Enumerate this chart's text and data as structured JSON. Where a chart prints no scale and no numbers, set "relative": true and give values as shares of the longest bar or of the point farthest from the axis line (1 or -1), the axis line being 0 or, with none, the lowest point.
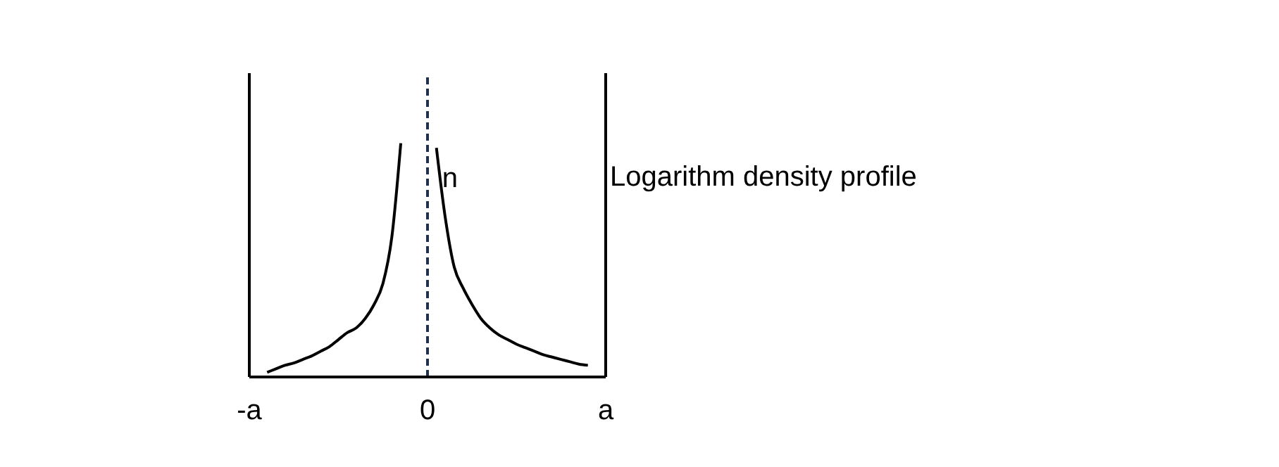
{
  "chart_data": {
    "type": "line",
    "relative": true,
    "annotations": [
      "Logarithm density profile"
    ],
    "categories": [
      "-a",
      null,
      null,
      null,
      null,
      null,
      null,
      null,
      null,
      null,
      null,
      null,
      null,
      null,
      null,
      null,
      null,
      null,
      null,
      null,
      "0",
      null,
      null,
      null,
      null,
      null,
      null,
      null,
      null,
      null,
      null,
      null,
      null,
      null,
      null,
      null,
      null,
      null,
      null,
      null,
      "a"
    ],
    "series": [
      {
        "name": "n",
        "color": "#000000",
        "values": [
          null,
          null,
          0.02,
          0.035,
          0.05,
          0.06,
          0.075,
          0.09,
          0.11,
          0.13,
          0.16,
          0.19,
          0.21,
          0.25,
          0.31,
          0.4,
          0.6,
          1,
          null,
          null,
          null,
          0.98,
          0.68,
          0.47,
          0.38,
          0.31,
          0.25,
          0.21,
          0.18,
          0.16,
          0.14,
          0.125,
          0.11,
          0.095,
          0.085,
          0.075,
          0.065,
          0.055,
          0.05,
          null,
          null
        ]
      }
    ],
    "ref_lines": [
      {
        "axis": "x",
        "value": "-a",
        "color": "#000000",
        "line_style": "solid"
      },
      {
        "axis": "x",
        "value": "0",
        "color": "#203050",
        "line_style": "dashed"
      },
      {
        "axis": "x",
        "value": "a",
        "color": "#000000",
        "line_style": "solid"
      }
    ],
    "grid": false,
    "legend": false,
    "marker": "none",
    "line_style": "solid"
  }
}
